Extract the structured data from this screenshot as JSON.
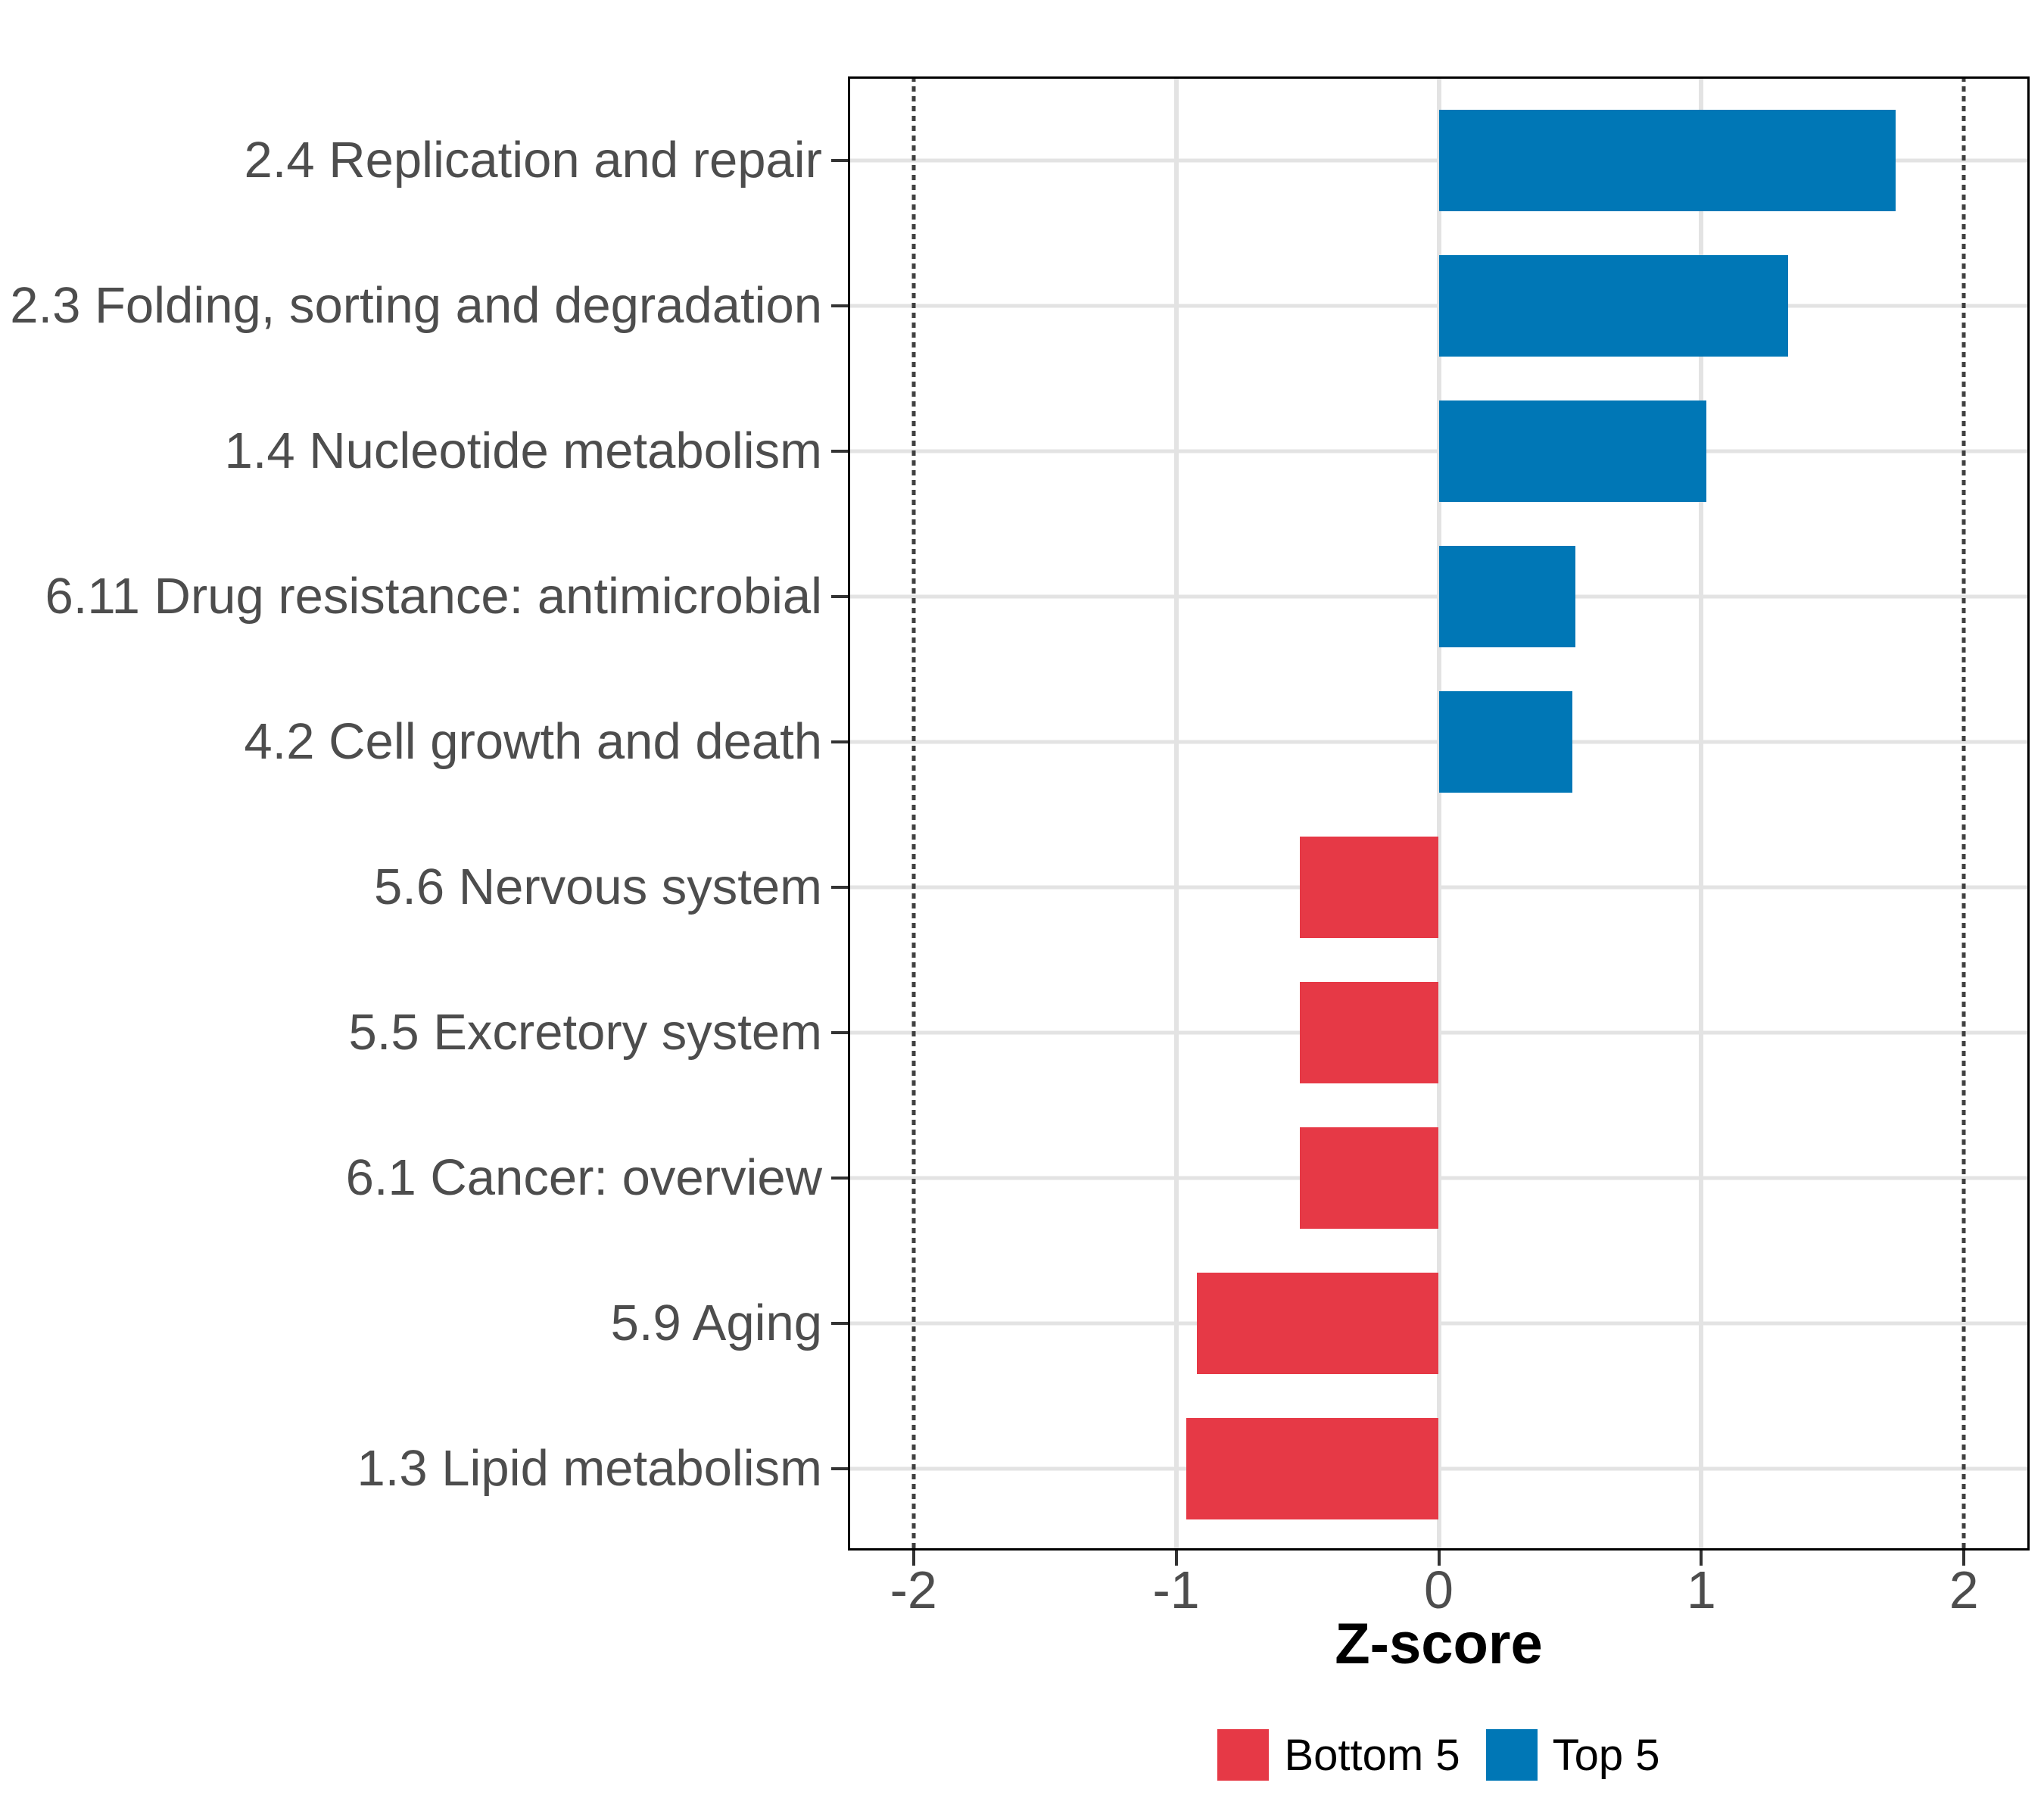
{
  "chart_data": {
    "type": "bar",
    "orientation": "horizontal",
    "title": "",
    "xlabel": "Z-score",
    "xlim": [
      -2.25,
      2.25
    ],
    "xticks": [
      {
        "value": -2,
        "label": "-2"
      },
      {
        "value": -1,
        "label": "-1"
      },
      {
        "value": 0,
        "label": "0"
      },
      {
        "value": 1,
        "label": "1"
      },
      {
        "value": 2,
        "label": "2"
      }
    ],
    "grid_ticks": [
      -1,
      0,
      1
    ],
    "grid": true,
    "threshold_lines": {
      "values": [
        -2,
        2
      ],
      "style": "dotted",
      "color": "#404040"
    },
    "bars": [
      {
        "category": "2.4 Replication and repair",
        "value": 1.74,
        "group": "Top 5"
      },
      {
        "category": "2.3 Folding, sorting and degradation",
        "value": 1.33,
        "group": "Top 5"
      },
      {
        "category": "1.4 Nucleotide metabolism",
        "value": 1.02,
        "group": "Top 5"
      },
      {
        "category": "6.11 Drug resistance: antimicrobial",
        "value": 0.52,
        "group": "Top 5"
      },
      {
        "category": "4.2 Cell growth and death",
        "value": 0.51,
        "group": "Top 5"
      },
      {
        "category": "5.6 Nervous system",
        "value": -0.53,
        "group": "Bottom 5"
      },
      {
        "category": "5.5 Excretory system",
        "value": -0.53,
        "group": "Bottom 5"
      },
      {
        "category": "6.1 Cancer: overview",
        "value": -0.53,
        "group": "Bottom 5"
      },
      {
        "category": "5.9 Aging",
        "value": -0.92,
        "group": "Bottom 5"
      },
      {
        "category": "1.3 Lipid metabolism",
        "value": -0.96,
        "group": "Bottom 5"
      }
    ],
    "colors": {
      "Top 5": "#0077B6",
      "Bottom 5": "#E63946"
    },
    "legend": {
      "position": "bottom",
      "items": [
        {
          "label": "Bottom 5",
          "color": "#E63946"
        },
        {
          "label": "Top 5",
          "color": "#0077B6"
        }
      ]
    },
    "style": {
      "grid_color": "#E3E3E3",
      "axis_text_color": "#4D4D4D",
      "axis_title_color": "#000000",
      "panel_border_color": "#000000",
      "tick_color": "#333333",
      "background": "#FFFFFF"
    }
  }
}
